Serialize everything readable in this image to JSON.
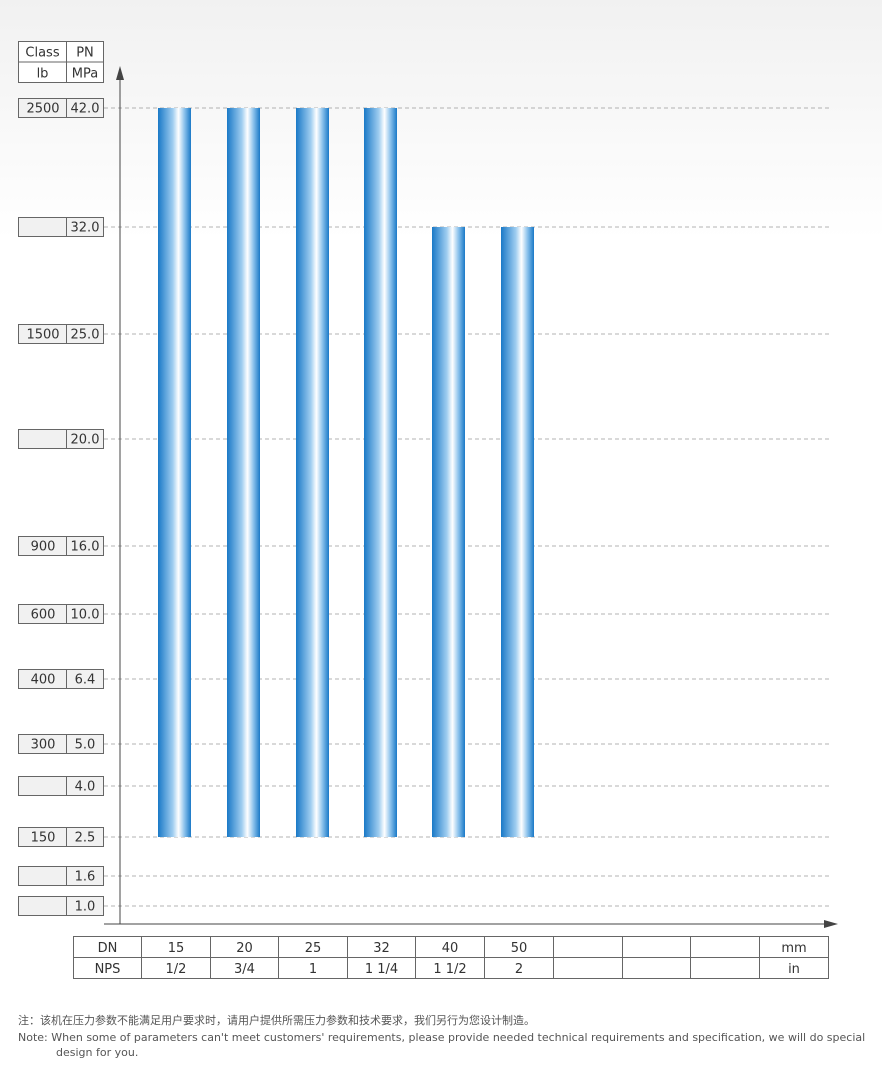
{
  "header": {
    "class_label": "Class",
    "pn_label": "PN",
    "lb_label": "lb",
    "mpa_label": "MPa"
  },
  "footer_table": {
    "dn_label": "DN",
    "nps_label": "NPS",
    "mm_label": "mm",
    "in_label": "in",
    "dn": [
      "15",
      "20",
      "25",
      "32",
      "40",
      "50",
      "",
      "",
      ""
    ],
    "nps": [
      "1/2",
      "3/4",
      "1",
      "1 1/4",
      "1 1/2",
      "2",
      "",
      "",
      ""
    ]
  },
  "chart_data": {
    "type": "bar",
    "categories": [
      "15",
      "20",
      "25",
      "32",
      "40",
      "50"
    ],
    "series": [
      {
        "bottom": [
          2.5,
          2.5,
          2.5,
          2.5,
          2.5,
          2.5
        ],
        "values": [
          42.0,
          42.0,
          42.0,
          42.0,
          32.0,
          32.0
        ]
      }
    ],
    "levels": [
      {
        "class": "2500",
        "pn": "42.0"
      },
      {
        "class": "",
        "pn": "32.0"
      },
      {
        "class": "1500",
        "pn": "25.0"
      },
      {
        "class": "",
        "pn": "20.0"
      },
      {
        "class": "900",
        "pn": "16.0"
      },
      {
        "class": "600",
        "pn": "10.0"
      },
      {
        "class": "400",
        "pn": "6.4"
      },
      {
        "class": "300",
        "pn": "5.0"
      },
      {
        "class": "",
        "pn": "4.0"
      },
      {
        "class": "150",
        "pn": "2.5"
      },
      {
        "class": "",
        "pn": "1.6"
      },
      {
        "class": "",
        "pn": "1.0"
      }
    ],
    "grid": true,
    "colors": {
      "bar_dark": "#1a79c7",
      "bar_light": "#ffffff",
      "grid": "#9a9a9a",
      "label_box": "#f1f1f1",
      "axis": "#444444"
    }
  },
  "notes": {
    "cn": "注：该机在压力参数不能满足用户要求时，请用户提供所需压力参数和技术要求，我们另行为您设计制造。",
    "en": "Note: When some of parameters can't meet customers' requirements, please provide needed technical requirements and specification, we will do special design for you."
  }
}
